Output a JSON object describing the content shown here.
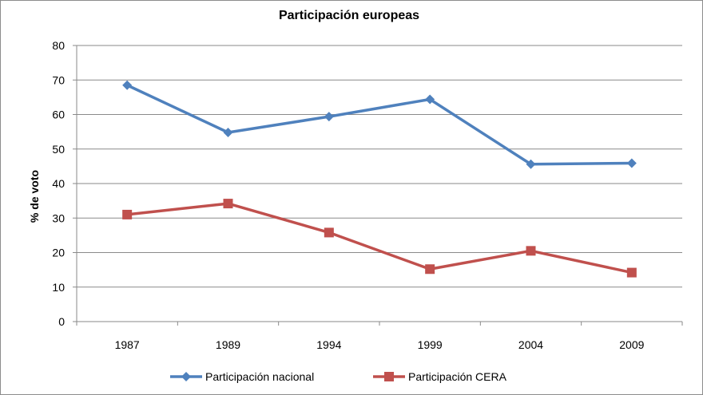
{
  "chart_data": {
    "type": "line",
    "title": "Participación europeas",
    "xlabel": "",
    "ylabel": "% de voto",
    "categories": [
      "1987",
      "1989",
      "1994",
      "1999",
      "2004",
      "2009"
    ],
    "ylim": [
      0,
      80
    ],
    "yticks": [
      0,
      10,
      20,
      30,
      40,
      50,
      60,
      70,
      80
    ],
    "grid": true,
    "legend_position": "bottom",
    "series": [
      {
        "name": "Participación nacional",
        "values": [
          68.5,
          54.8,
          59.4,
          64.4,
          45.6,
          45.9
        ],
        "color": "#4f81bd",
        "marker": "diamond"
      },
      {
        "name": "Participación CERA",
        "values": [
          31.0,
          34.2,
          25.8,
          15.2,
          20.5,
          14.2
        ],
        "color": "#c0504d",
        "marker": "square"
      }
    ]
  }
}
